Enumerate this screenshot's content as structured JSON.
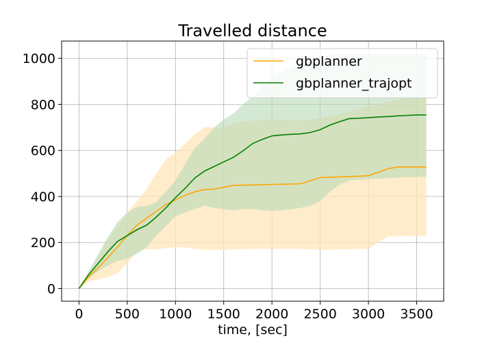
{
  "chart_data": {
    "type": "line",
    "title": "Travelled distance",
    "xlabel": "time, [sec]",
    "ylabel": "",
    "xlim": [
      -180,
      3780
    ],
    "ylim": [
      -55,
      1075
    ],
    "xticks": [
      0,
      500,
      1000,
      1500,
      2000,
      2500,
      3000,
      3500
    ],
    "yticks": [
      0,
      200,
      400,
      600,
      800,
      1000
    ],
    "grid": true,
    "legend_position": "top-right",
    "series": [
      {
        "name": "gbplanner",
        "color": "#ffa500",
        "band_color": "#ffe5b8",
        "x": [
          0,
          100,
          200,
          300,
          400,
          500,
          600,
          700,
          800,
          900,
          1000,
          1100,
          1200,
          1300,
          1400,
          1500,
          1600,
          1800,
          2000,
          2300,
          2500,
          2700,
          2900,
          3000,
          3100,
          3200,
          3300,
          3400,
          3500,
          3600
        ],
        "mean": [
          0,
          50,
          90,
          135,
          180,
          230,
          275,
          305,
          335,
          365,
          385,
          405,
          420,
          430,
          432,
          440,
          448,
          450,
          452,
          455,
          482,
          485,
          488,
          490,
          505,
          520,
          528,
          528,
          528,
          528
        ],
        "lower": [
          0,
          30,
          40,
          50,
          65,
          110,
          160,
          170,
          170,
          175,
          180,
          178,
          172,
          168,
          168,
          168,
          170,
          172,
          172,
          172,
          168,
          170,
          172,
          172,
          200,
          225,
          228,
          228,
          228,
          228
        ],
        "upper": [
          0,
          70,
          140,
          210,
          270,
          330,
          380,
          430,
          500,
          560,
          590,
          630,
          670,
          700,
          700,
          700,
          720,
          730,
          735,
          730,
          740,
          760,
          780,
          790,
          800,
          810,
          820,
          830,
          830,
          830
        ]
      },
      {
        "name": "gbplanner_trajopt",
        "color": "#008000",
        "band_color": "#b8dab8",
        "x": [
          0,
          100,
          200,
          300,
          400,
          500,
          600,
          700,
          800,
          900,
          1000,
          1100,
          1200,
          1300,
          1400,
          1500,
          1600,
          1700,
          1800,
          1900,
          2000,
          2100,
          2200,
          2300,
          2400,
          2500,
          2600,
          2700,
          2800,
          2900,
          3000,
          3100,
          3200,
          3300,
          3400,
          3500,
          3600
        ],
        "mean": [
          0,
          60,
          110,
          160,
          205,
          230,
          255,
          275,
          310,
          350,
          395,
          435,
          480,
          510,
          530,
          550,
          570,
          598,
          630,
          648,
          663,
          667,
          670,
          672,
          678,
          690,
          710,
          725,
          738,
          740,
          742,
          745,
          747,
          750,
          752,
          754,
          754
        ],
        "lower": [
          0,
          45,
          75,
          100,
          120,
          130,
          150,
          180,
          230,
          270,
          315,
          330,
          345,
          360,
          350,
          345,
          340,
          345,
          345,
          340,
          338,
          340,
          345,
          350,
          360,
          380,
          420,
          450,
          470,
          472,
          475,
          478,
          480,
          482,
          484,
          485,
          485
        ],
        "upper": [
          0,
          75,
          150,
          225,
          290,
          330,
          355,
          360,
          375,
          420,
          470,
          540,
          610,
          650,
          700,
          735,
          760,
          800,
          835,
          880,
          920,
          940,
          960,
          980,
          1000,
          1010,
          1015,
          1018,
          1020,
          1020,
          1020,
          1020,
          1020,
          1020,
          1020,
          1020,
          1020
        ]
      }
    ]
  }
}
